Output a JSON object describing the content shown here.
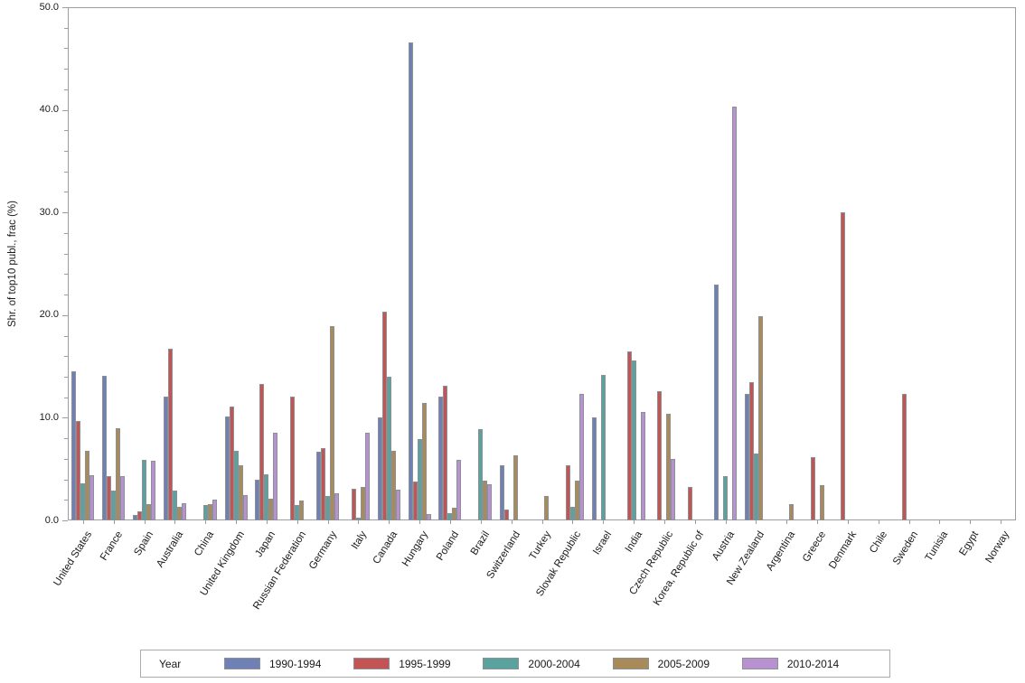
{
  "chart_data": {
    "type": "bar",
    "title": "",
    "xlabel": "",
    "ylabel": "Shr. of top10 publ., frac (%)",
    "ylim": [
      0,
      50
    ],
    "ytick_major_step": 10,
    "ytick_minor_step": 2,
    "ytick_labels": [
      "0.0",
      "10.0",
      "20.0",
      "30.0",
      "40.0",
      "50.0"
    ],
    "grid": false,
    "legend": {
      "title": "Year",
      "position": "bottom"
    },
    "frame_color": "#9a9da1",
    "bar_border_color": "#8c8f93",
    "categories": [
      "United States",
      "France",
      "Spain",
      "Australia",
      "China",
      "United Kingdom",
      "Japan",
      "Russian Federation",
      "Germany",
      "Italy",
      "Canada",
      "Hungary",
      "Poland",
      "Brazil",
      "Switzerland",
      "Turkey",
      "Slovak Republic",
      "Israel",
      "India",
      "Czech Republic",
      "Korea, Republic of",
      "Austria",
      "New Zealand",
      "Argentina",
      "Greece",
      "Denmark",
      "Chile",
      "Sweden",
      "Tunisia",
      "Egypt",
      "Norway"
    ],
    "series": [
      {
        "name": "1990-1994",
        "color": "#6f80b5",
        "values": [
          14.5,
          14.1,
          0.5,
          12.1,
          0,
          10.1,
          4.0,
          0,
          6.7,
          0,
          10.0,
          46.6,
          12.1,
          0,
          5.4,
          0,
          0,
          10.0,
          0,
          0,
          0,
          23.0,
          12.3,
          0,
          0,
          0,
          0,
          0,
          0,
          0,
          0
        ]
      },
      {
        "name": "1995-1999",
        "color": "#c25553",
        "values": [
          9.7,
          4.3,
          0.9,
          16.7,
          0,
          11.1,
          13.3,
          12.1,
          7.0,
          3.1,
          20.3,
          3.8,
          13.1,
          0,
          1.1,
          0,
          5.4,
          0,
          16.5,
          12.6,
          3.3,
          0,
          13.5,
          0,
          6.2,
          30.0,
          0,
          12.3,
          0,
          0,
          0
        ]
      },
      {
        "name": "2000-2004",
        "color": "#5aa29d",
        "values": [
          3.6,
          2.9,
          5.9,
          2.9,
          1.5,
          6.8,
          4.5,
          1.5,
          2.4,
          0.3,
          14.0,
          7.9,
          0.7,
          8.9,
          0,
          0,
          1.3,
          14.2,
          15.6,
          0,
          0,
          4.3,
          6.5,
          0,
          0,
          0,
          0,
          0,
          0,
          0,
          0
        ]
      },
      {
        "name": "2005-2009",
        "color": "#a98a59",
        "values": [
          6.8,
          9.0,
          1.6,
          1.3,
          1.6,
          5.4,
          2.1,
          1.9,
          18.9,
          3.3,
          6.8,
          11.4,
          1.2,
          3.9,
          6.3,
          2.4,
          3.9,
          0,
          0,
          10.4,
          0,
          0,
          19.9,
          1.6,
          3.4,
          0,
          0,
          0,
          0,
          0,
          0
        ]
      },
      {
        "name": "2010-2014",
        "color": "#b791d0",
        "values": [
          4.4,
          4.3,
          5.8,
          1.7,
          2.0,
          2.5,
          8.5,
          0,
          2.6,
          8.5,
          3.0,
          0.6,
          5.9,
          3.5,
          0,
          0,
          12.3,
          0,
          10.6,
          6.0,
          0,
          40.3,
          0,
          0,
          0,
          0,
          0,
          0,
          0,
          0,
          0
        ]
      }
    ]
  }
}
